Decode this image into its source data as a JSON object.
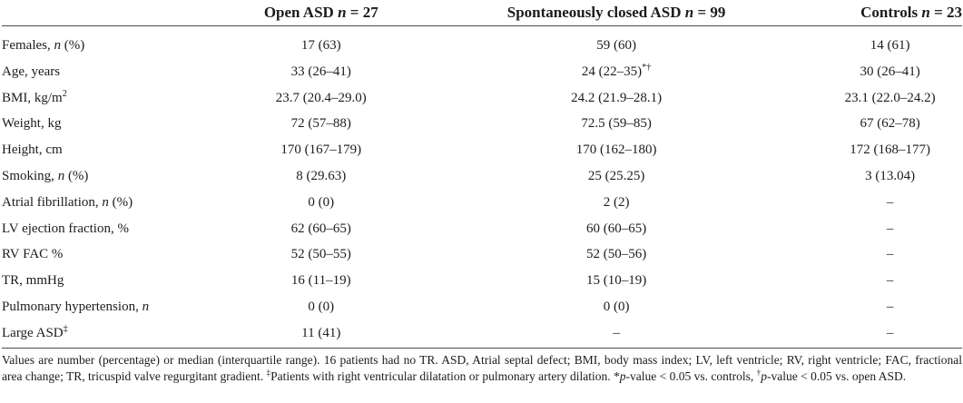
{
  "header": {
    "label_col": "",
    "open": "Open ASD <i>n</i> = 27",
    "closed": "Spontaneously closed ASD <i>n</i> = 99",
    "controls": "Controls <i>n</i> = 23"
  },
  "rows": [
    {
      "label": "Females, <i>n</i> (%)",
      "open": "17 (63)",
      "closed": "59 (60)",
      "controls": "14 (61)"
    },
    {
      "label": "Age, years",
      "open": "33 (26–41)",
      "closed": "24 (22–35)<sup>*†</sup>",
      "controls": "30 (26–41)"
    },
    {
      "label": "BMI, kg/m<sup>2</sup>",
      "open": "23.7 (20.4–29.0)",
      "closed": "24.2 (21.9–28.1)",
      "controls": "23.1 (22.0–24.2)"
    },
    {
      "label": "Weight, kg",
      "open": "72 (57–88)",
      "closed": "72.5 (59–85)",
      "controls": "67 (62–78)"
    },
    {
      "label": "Height, cm",
      "open": "170 (167–179)",
      "closed": "170 (162–180)",
      "controls": "172 (168–177)"
    },
    {
      "label": "Smoking, <i>n</i> (%)",
      "open": "8 (29.63)",
      "closed": "25 (25.25)",
      "controls": "3 (13.04)"
    },
    {
      "label": "Atrial fibrillation, <i>n</i> (%)",
      "open": "0 (0)",
      "closed": "2 (2)",
      "controls": "–"
    },
    {
      "label": "LV ejection fraction, %",
      "open": "62 (60–65)",
      "closed": "60 (60–65)",
      "controls": "–"
    },
    {
      "label": "RV FAC %",
      "open": "52 (50–55)",
      "closed": "52 (50–56)",
      "controls": "–"
    },
    {
      "label": "TR, mmHg",
      "open": "16 (11–19)",
      "closed": "15 (10–19)",
      "controls": "–"
    },
    {
      "label": "Pulmonary hypertension, <i>n</i>",
      "open": "0 (0)",
      "closed": "0 (0)",
      "controls": "–"
    },
    {
      "label": "Large ASD<sup>‡</sup>",
      "open": "11 (41)",
      "closed": "–",
      "controls": "–"
    }
  ],
  "footnote_html": "Values are number (percentage) or median (interquartile range). 16 patients had no TR. ASD, Atrial septal defect; BMI, body mass index; LV, left ventricle; RV, right ventricle; FAC, fractional area change; TR, tricuspid valve regurgitant gradient. <sup>‡</sup>Patients with right ventricular dilatation or pulmonary artery dilation. *<i>p</i>-value &lt; 0.05 vs. controls, <sup>†</sup><i>p</i>-value &lt; 0.05 vs. open ASD.",
  "colors": {
    "text": "#1c1c1c",
    "rule": "#4d4d4d",
    "background": "#ffffff"
  }
}
